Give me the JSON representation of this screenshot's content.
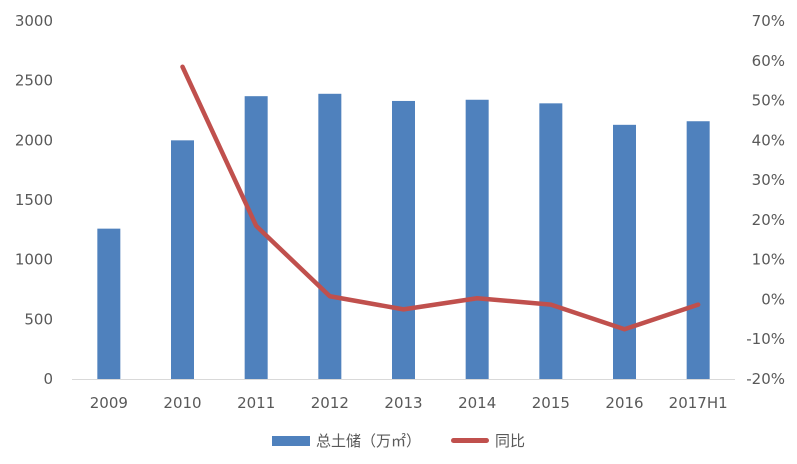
{
  "chart_data": {
    "type": "bar+line",
    "title": "",
    "categories": [
      "2009",
      "2010",
      "2011",
      "2012",
      "2013",
      "2014",
      "2015",
      "2016",
      "2017H1"
    ],
    "series": [
      {
        "name": "总土储（万㎡）",
        "type": "bar",
        "axis": "left",
        "color": "#4f81bd",
        "values": [
          1260,
          2000,
          2370,
          2390,
          2330,
          2340,
          2310,
          2130,
          2160
        ]
      },
      {
        "name": "同比",
        "type": "line",
        "axis": "right",
        "color": "#c0504d",
        "values": [
          null,
          58.5,
          18.5,
          0.8,
          -2.5,
          0.3,
          -1.3,
          -7.5,
          -1.3
        ]
      }
    ],
    "left_axis": {
      "ylim": [
        0,
        3000
      ],
      "ticks": [
        "0",
        "500",
        "1000",
        "1500",
        "2000",
        "2500",
        "3000"
      ]
    },
    "right_axis": {
      "ylim": [
        -20,
        70
      ],
      "ticks": [
        "-20%",
        "-10%",
        "0%",
        "10%",
        "20%",
        "30%",
        "40%",
        "50%",
        "60%",
        "70%"
      ]
    },
    "xlabel": "",
    "ylabel": "",
    "grid": false,
    "legend_position": "bottom"
  },
  "legend": {
    "bar_label": "总土储（万㎡）",
    "line_label": "同比"
  }
}
